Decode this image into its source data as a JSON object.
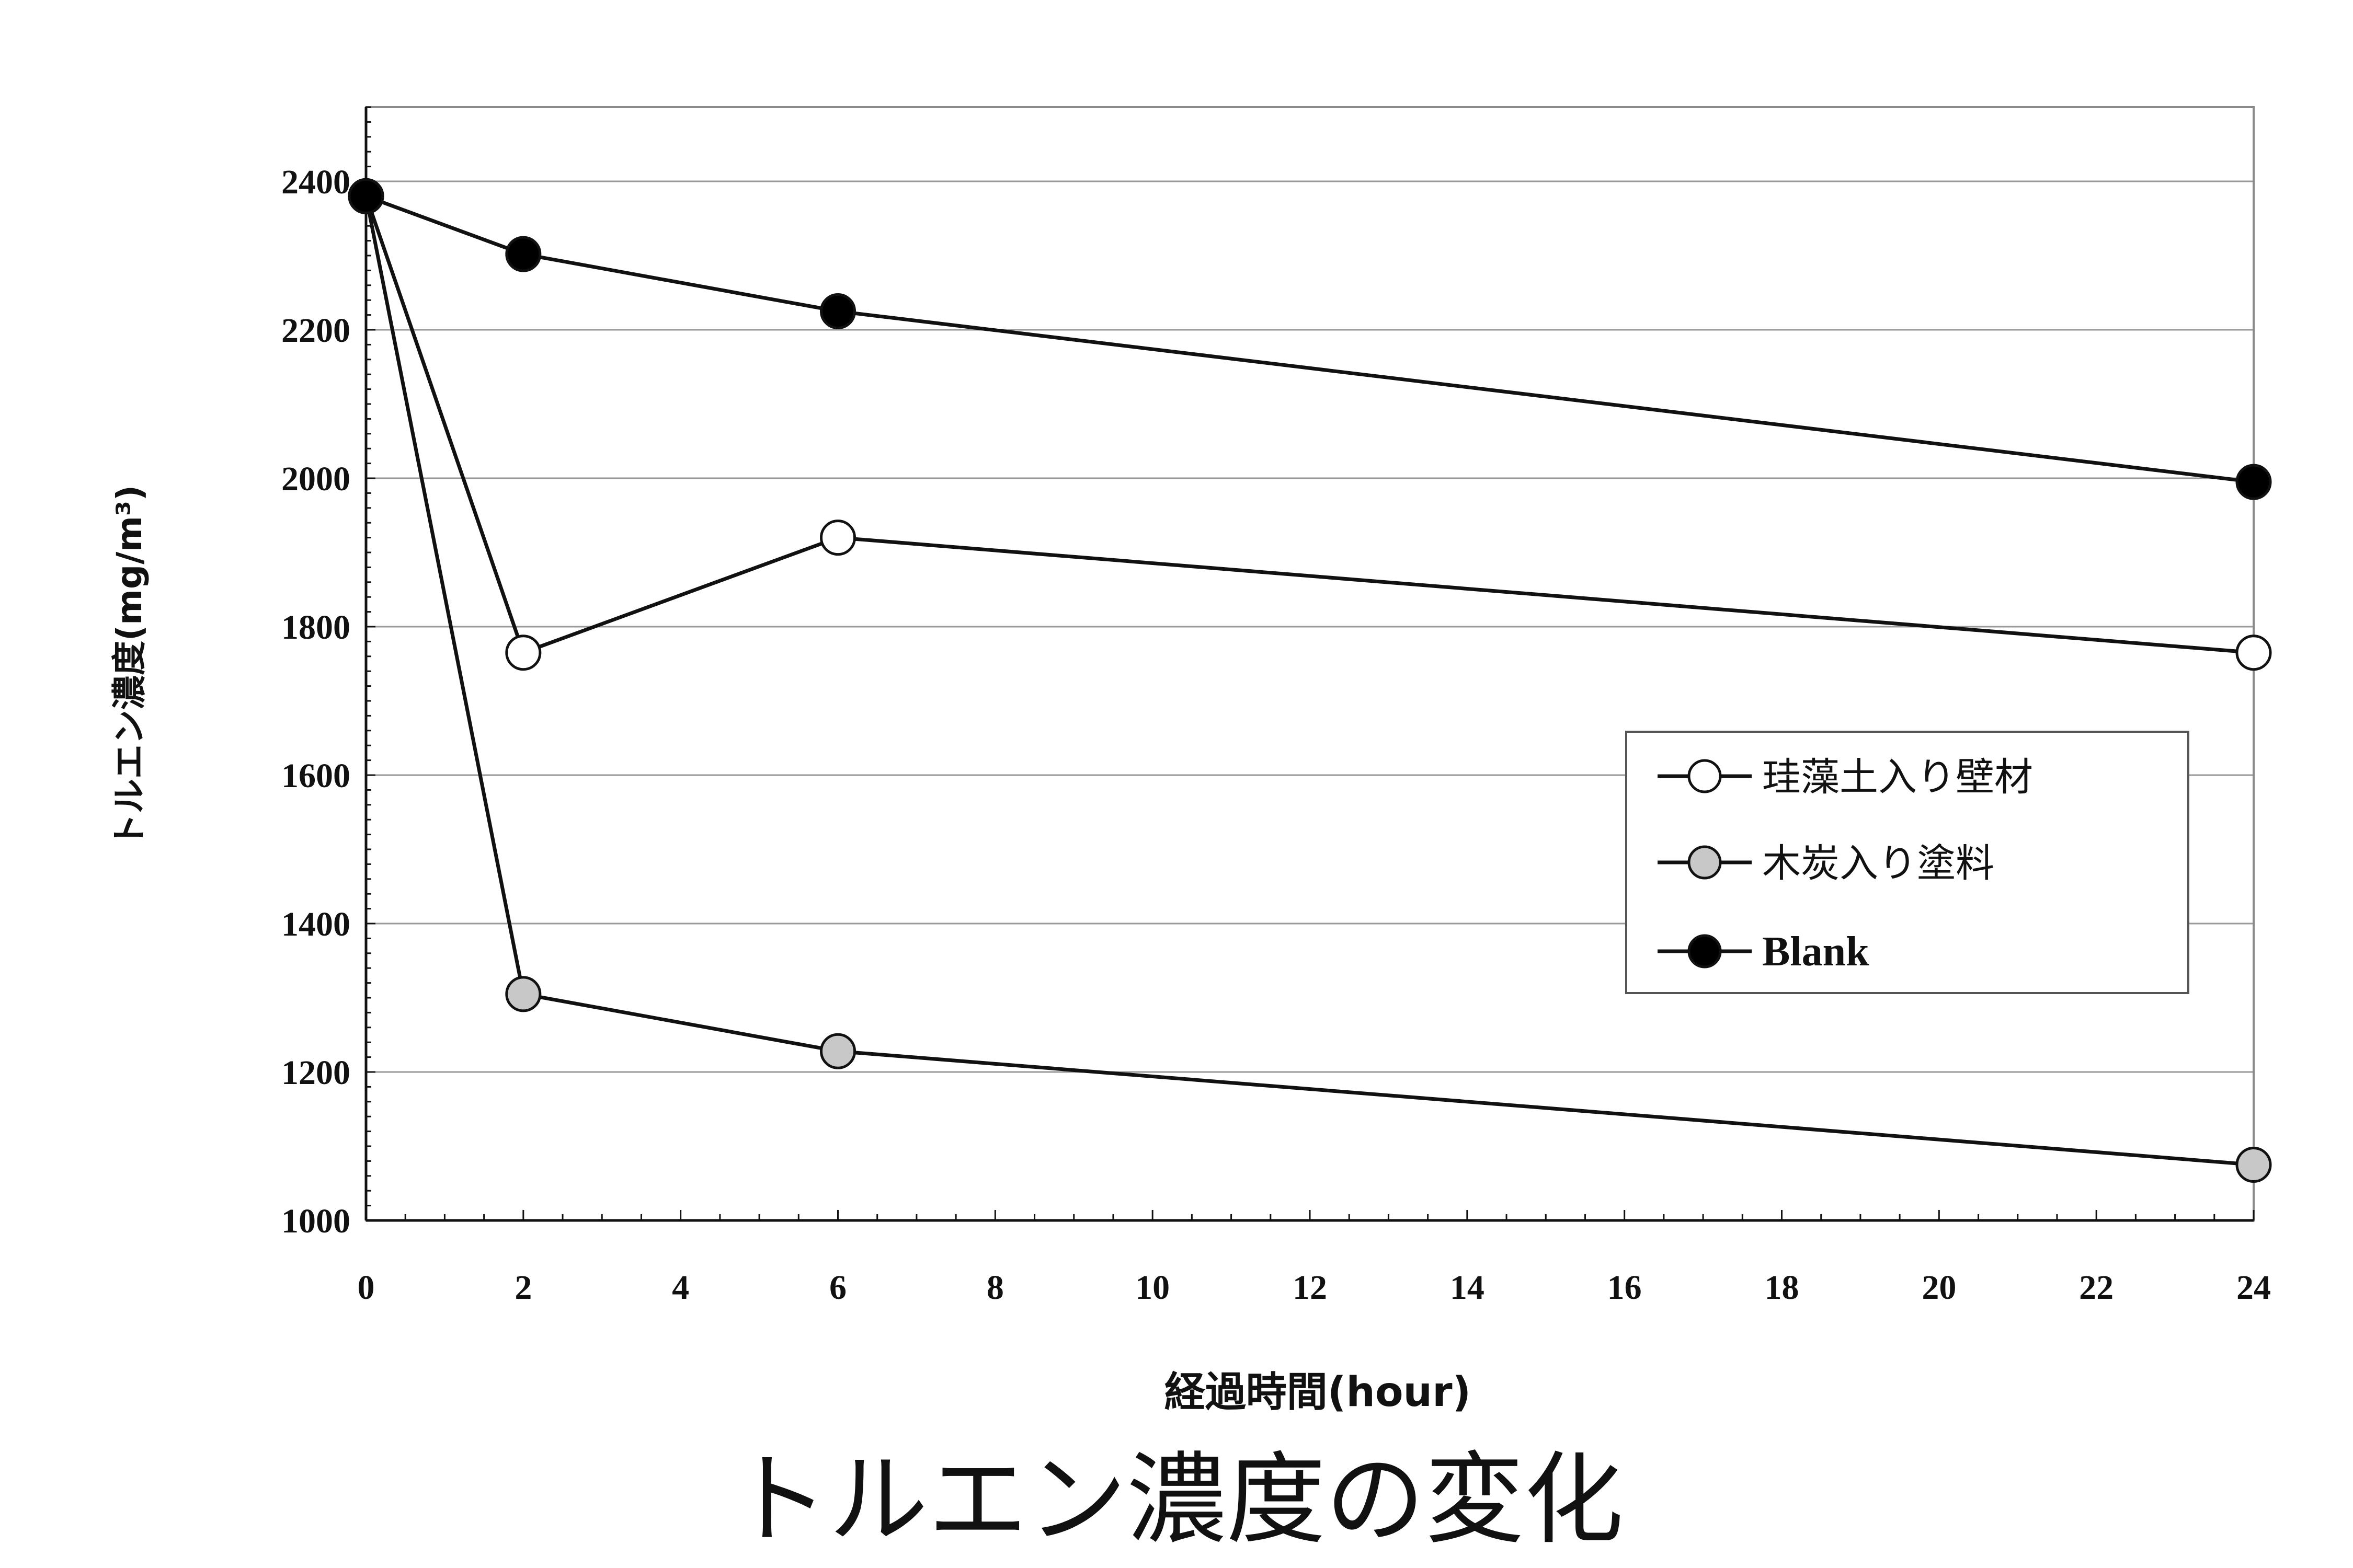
{
  "chart_data": {
    "type": "line",
    "title": "",
    "caption": "トルエン濃度の変化",
    "xlabel": "経過時間(hour)",
    "ylabel": "トルエン濃度(mg/m³)",
    "xlim": [
      0,
      24
    ],
    "ylim": [
      1000,
      2500
    ],
    "xticks": [
      0,
      2,
      4,
      6,
      8,
      10,
      12,
      14,
      16,
      18,
      20,
      22,
      24
    ],
    "yticks": [
      1000,
      1200,
      1400,
      1600,
      1800,
      2000,
      2200,
      2400
    ],
    "grid": "horizontal",
    "legend_position": "right",
    "series": [
      {
        "name": "珪藻土入り壁材",
        "marker": "open-circle",
        "color": "#ffffff",
        "x": [
          0,
          2,
          6,
          24
        ],
        "y": [
          2380,
          1765,
          1920,
          1765
        ]
      },
      {
        "name": "木炭入り塗料",
        "marker": "gray-circle",
        "color": "#c8c8c8",
        "x": [
          0,
          2,
          6,
          24
        ],
        "y": [
          2380,
          1305,
          1228,
          1075
        ]
      },
      {
        "name": "Blank",
        "marker": "black-circle",
        "color": "#000000",
        "x": [
          0,
          2,
          6,
          24
        ],
        "y": [
          2380,
          2302,
          2225,
          1995
        ]
      }
    ]
  }
}
